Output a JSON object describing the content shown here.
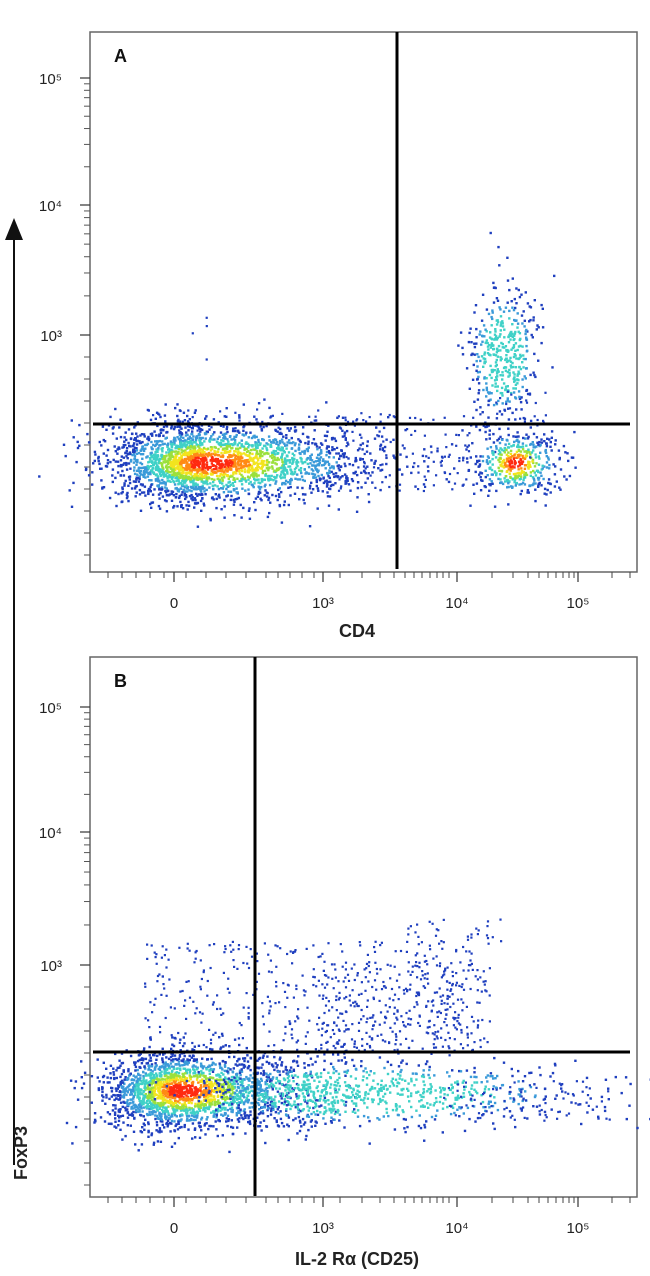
{
  "chart_data": [
    {
      "type": "scatter",
      "panel": "A",
      "xlabel": "CD4",
      "ylabel": "FoxP3",
      "x_scale": "biexponential",
      "y_scale": "biexponential",
      "x_ticks": [
        "0",
        "10³",
        "10⁴",
        "10⁵"
      ],
      "y_ticks": [
        "10³",
        "10⁴",
        "10⁵"
      ],
      "gates": {
        "x": 3500,
        "y": 200
      },
      "populations": [
        {
          "center": [
            60,
            35
          ],
          "spread": "large",
          "density": "high",
          "note": "CD4- FoxP3- cluster"
        },
        {
          "center": [
            30000,
            35
          ],
          "spread": "small",
          "density": "high",
          "note": "CD4+ FoxP3- cluster"
        },
        {
          "center": [
            25000,
            700
          ],
          "spread": "small",
          "density": "medium",
          "note": "CD4+ FoxP3+ cluster"
        }
      ],
      "colormap": [
        "#1f3fbf",
        "#3a9ad9",
        "#3fd1c7",
        "#9be03c",
        "#f2e41e",
        "#ff8a14",
        "#ff2a10"
      ]
    },
    {
      "type": "scatter",
      "panel": "B",
      "xlabel": "IL-2 Rα (CD25)",
      "ylabel": "FoxP3",
      "x_scale": "biexponential",
      "y_scale": "biexponential",
      "x_ticks": [
        "0",
        "10³",
        "10⁴",
        "10⁵"
      ],
      "y_ticks": [
        "10³",
        "10⁴",
        "10⁵"
      ],
      "gates": {
        "x": 300,
        "y": 200
      },
      "populations": [
        {
          "center": [
            20,
            35
          ],
          "spread": "large",
          "density": "high",
          "note": "CD25- FoxP3- cluster"
        },
        {
          "center": [
            2000,
            35
          ],
          "spread": "trail",
          "density": "low",
          "note": "CD25+ FoxP3- trail"
        },
        {
          "center": [
            2000,
            600
          ],
          "spread": "diffuse",
          "density": "low",
          "note": "CD25+ FoxP3+ diffuse"
        }
      ],
      "colormap": [
        "#1f3fbf",
        "#3a9ad9",
        "#3fd1c7",
        "#9be03c",
        "#f2e41e",
        "#ff8a14",
        "#ff2a10"
      ]
    }
  ],
  "shared_ylabel": "FoxP3"
}
